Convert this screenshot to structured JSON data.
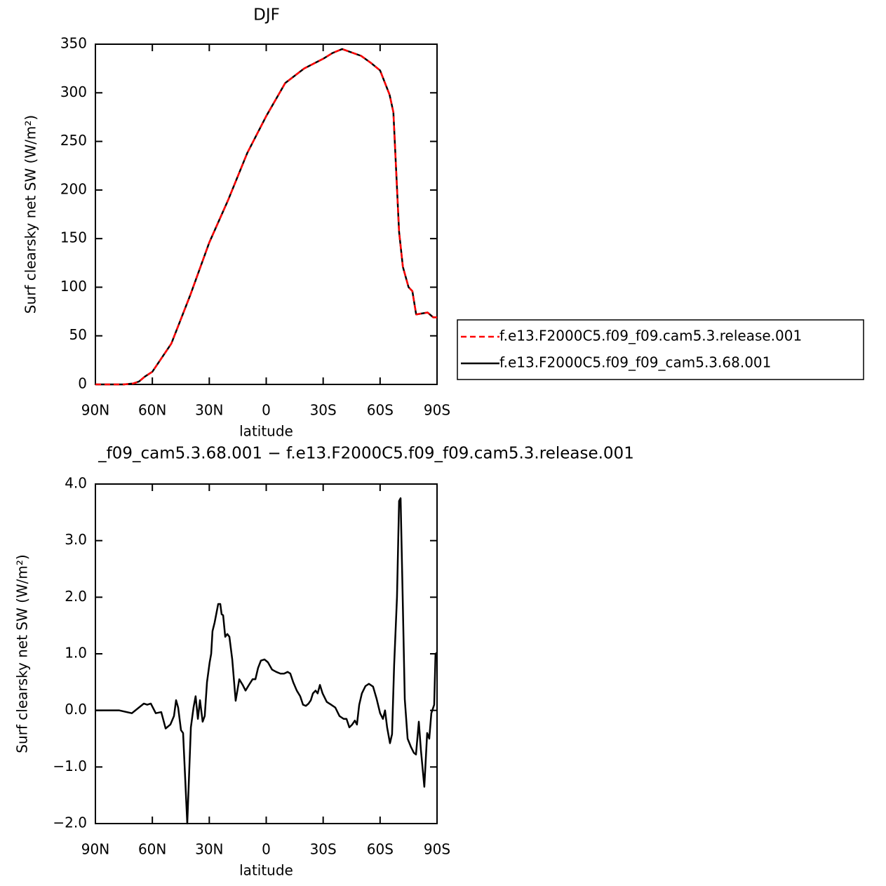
{
  "chart_data": [
    {
      "type": "line",
      "title": "DJF",
      "xlabel": "latitude",
      "ylabel": "Surf clearsky net SW (W/m²)",
      "x": [
        90,
        80,
        75,
        70,
        67,
        64,
        60,
        50,
        40,
        30,
        20,
        10,
        0,
        -10,
        -20,
        -30,
        -35,
        -40,
        -50,
        -55,
        -60,
        -65,
        -67,
        -70,
        -72,
        -75,
        -77,
        -79,
        -85,
        -88,
        -90
      ],
      "series": [
        {
          "name": "f.e13.F2000C5.f09_f09_cam5.3.68.001",
          "color": "#000000",
          "dash": false,
          "values": [
            0,
            0,
            0,
            1,
            3,
            8,
            13,
            42,
            92,
            146,
            190,
            238,
            276,
            310,
            325,
            335,
            341,
            345,
            338,
            331,
            323,
            298,
            280,
            157,
            121,
            100,
            96,
            72,
            74,
            69,
            69
          ]
        },
        {
          "name": "f.e13.F2000C5.f09_f09.cam5.3.release.001",
          "color": "#ff0000",
          "dash": true,
          "values": [
            0,
            0,
            0,
            1,
            3,
            8,
            13,
            42,
            92,
            146,
            190,
            238,
            276,
            310,
            325,
            335,
            341,
            345,
            338,
            331,
            323,
            298,
            280,
            157,
            121,
            100,
            96,
            72,
            74,
            69,
            69
          ]
        }
      ],
      "legend": "right",
      "xlim": [
        90,
        -90
      ],
      "xticks": [
        {
          "value": 90,
          "label": "90N"
        },
        {
          "value": 60,
          "label": "60N"
        },
        {
          "value": 30,
          "label": "30N"
        },
        0,
        {
          "value": -30,
          "label": "30S"
        },
        {
          "value": -60,
          "label": "60S"
        },
        {
          "value": -90,
          "label": "90S"
        }
      ],
      "ylim": [
        0,
        350
      ],
      "yticks": [
        0,
        50,
        100,
        150,
        200,
        250,
        300,
        350
      ]
    },
    {
      "type": "line",
      "title": "_f09_cam5.3.68.001 − f.e13.F2000C5.f09_f09.cam5.3.release.001",
      "xlabel": "latitude",
      "ylabel": "Surf clearsky net SW (W/m²)",
      "color": "#000000",
      "x": [
        90,
        77.4,
        70.8,
        64.5,
        62.7,
        60.8,
        58.2,
        55.3,
        53.0,
        50.5,
        48.6,
        47.5,
        46.4,
        44.9,
        43.8,
        42.7,
        41.6,
        39.7,
        38.3,
        37.2,
        36.0,
        34.9,
        33.5,
        32.4,
        31.2,
        29.8,
        29.0,
        28.3,
        27.2,
        25.3,
        24.2,
        23.5,
        22.7,
        21.6,
        20.5,
        19.4,
        17.9,
        16.1,
        14.2,
        12.4,
        10.9,
        9.1,
        7.2,
        5.7,
        4.3,
        2.8,
        0.9,
        -0.9,
        -3.1,
        -5.3,
        -7.5,
        -9.4,
        -11.3,
        -12.7,
        -14.2,
        -16.1,
        -17.9,
        -19.4,
        -20.9,
        -22.3,
        -23.5,
        -24.6,
        -26.0,
        -27.1,
        -28.3,
        -29.7,
        -31.9,
        -34.2,
        -36.4,
        -38.6,
        -40.8,
        -42.3,
        -43.8,
        -45.3,
        -46.7,
        -47.8,
        -49.0,
        -50.4,
        -52.3,
        -54.1,
        -56.3,
        -58.2,
        -60.0,
        -61.5,
        -62.6,
        -63.7,
        -65.2,
        -66.3,
        -67.4,
        -68.9,
        -70.0,
        -70.8,
        -71.9,
        -73.0,
        -74.5,
        -76.3,
        -77.8,
        -78.9,
        -80.4,
        -81.5,
        -83.3,
        -84.8,
        -85.9,
        -87.0,
        -88.5,
        -89.2,
        -90
      ],
      "values": [
        0,
        0,
        -0.05,
        0.12,
        0.1,
        0.12,
        -0.05,
        -0.03,
        -0.32,
        -0.25,
        -0.1,
        0.18,
        0.05,
        -0.35,
        -0.4,
        -1.2,
        -2.0,
        -0.3,
        0.05,
        0.25,
        -0.15,
        0.18,
        -0.2,
        -0.1,
        0.5,
        0.85,
        1.0,
        1.4,
        1.55,
        1.88,
        1.88,
        1.7,
        1.68,
        1.3,
        1.35,
        1.3,
        0.9,
        0.17,
        0.55,
        0.45,
        0.35,
        0.45,
        0.55,
        0.55,
        0.75,
        0.88,
        0.9,
        0.85,
        0.72,
        0.68,
        0.65,
        0.65,
        0.68,
        0.65,
        0.5,
        0.35,
        0.25,
        0.1,
        0.08,
        0.12,
        0.18,
        0.3,
        0.35,
        0.3,
        0.45,
        0.3,
        0.15,
        0.1,
        0.05,
        -0.1,
        -0.15,
        -0.15,
        -0.3,
        -0.25,
        -0.18,
        -0.25,
        0.1,
        0.3,
        0.43,
        0.47,
        0.42,
        0.2,
        -0.05,
        -0.15,
        0.0,
        -0.3,
        -0.58,
        -0.42,
        0.8,
        2.0,
        3.7,
        3.75,
        2.0,
        0.2,
        -0.5,
        -0.65,
        -0.75,
        -0.78,
        -0.2,
        -0.7,
        -1.35,
        -0.4,
        -0.5,
        -0.05,
        0.1,
        1.0,
        1.02
      ],
      "xlim": [
        90,
        -90
      ],
      "xticks": [
        {
          "value": 90,
          "label": "90N"
        },
        {
          "value": 60,
          "label": "60N"
        },
        {
          "value": 30,
          "label": "30N"
        },
        0,
        {
          "value": -30,
          "label": "30S"
        },
        {
          "value": -60,
          "label": "60S"
        },
        {
          "value": -90,
          "label": "90S"
        }
      ],
      "ylim": [
        -2,
        4
      ],
      "yticks": [
        {
          "value": -2,
          "label": "−2.0"
        },
        {
          "value": -1,
          "label": "−1.0"
        },
        {
          "value": 0,
          "label": "0.0"
        },
        {
          "value": 1,
          "label": "1.0"
        },
        {
          "value": 2,
          "label": "2.0"
        },
        {
          "value": 3,
          "label": "3.0"
        },
        {
          "value": 4,
          "label": "4.0"
        }
      ]
    }
  ]
}
